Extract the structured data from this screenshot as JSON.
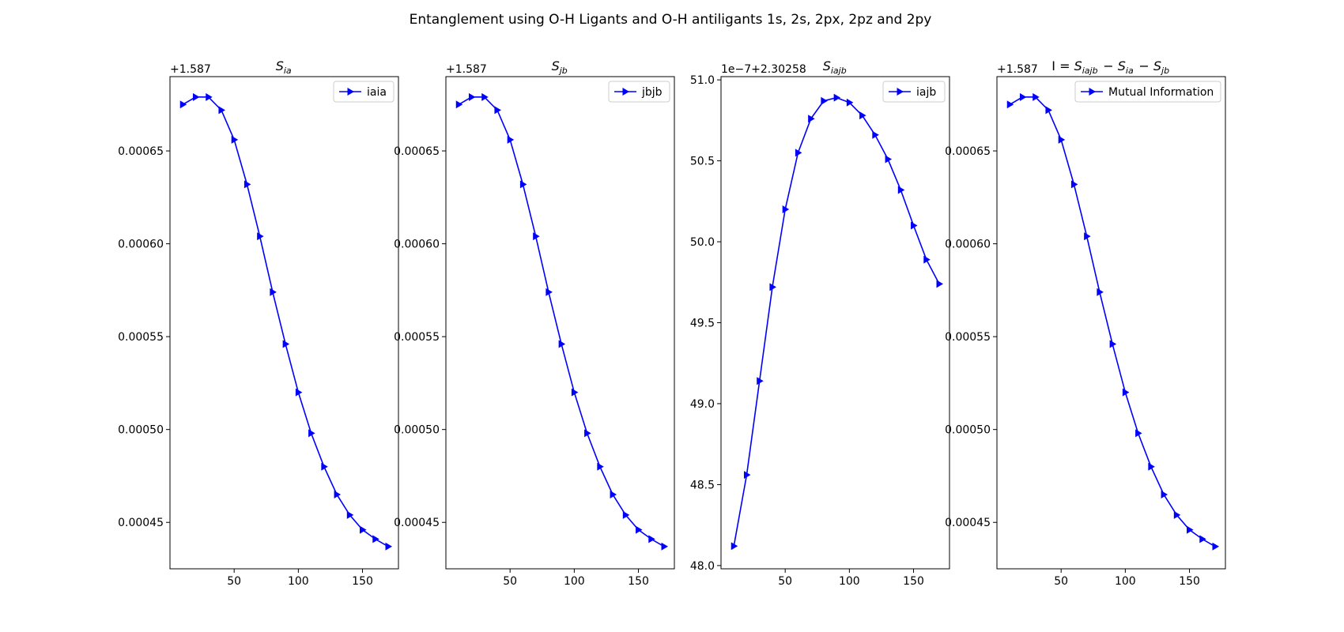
{
  "figure": {
    "suptitle": "Entanglement using O-H Ligants and O-H antiligants 1s, 2s, 2px, 2pz and 2py"
  },
  "chart_data": [
    {
      "type": "line",
      "title": "S_ia",
      "title_parts": [
        {
          "t": "S",
          "s": "ia"
        }
      ],
      "offset_label": "+1.587",
      "x": [
        10,
        20,
        30,
        40,
        50,
        60,
        70,
        80,
        90,
        100,
        110,
        120,
        130,
        140,
        150,
        160,
        170
      ],
      "series": [
        {
          "name": "iaia",
          "color": "#0000ff",
          "marker": "triangle-right",
          "values": [
            0.000675,
            0.000679,
            0.000679,
            0.000672,
            0.000656,
            0.000632,
            0.000604,
            0.000574,
            0.000546,
            0.00052,
            0.000498,
            0.00048,
            0.000465,
            0.000454,
            0.000446,
            0.000441,
            0.000437
          ]
        }
      ],
      "xlim": [
        0,
        178
      ],
      "ylim": [
        0.000425,
        0.00069
      ],
      "xticks": [
        50,
        100,
        150
      ],
      "yticks": [
        0.00045,
        0.0005,
        0.00055,
        0.0006,
        0.00065
      ],
      "ytick_labels": [
        "0.00045",
        "0.00050",
        "0.00055",
        "0.00060",
        "0.00065"
      ],
      "legend_position": "upper right"
    },
    {
      "type": "line",
      "title": "S_jb",
      "title_parts": [
        {
          "t": "S",
          "s": "jb"
        }
      ],
      "offset_label": "+1.587",
      "x": [
        10,
        20,
        30,
        40,
        50,
        60,
        70,
        80,
        90,
        100,
        110,
        120,
        130,
        140,
        150,
        160,
        170
      ],
      "series": [
        {
          "name": "jbjb",
          "color": "#0000ff",
          "marker": "triangle-right",
          "values": [
            0.000675,
            0.000679,
            0.000679,
            0.000672,
            0.000656,
            0.000632,
            0.000604,
            0.000574,
            0.000546,
            0.00052,
            0.000498,
            0.00048,
            0.000465,
            0.000454,
            0.000446,
            0.000441,
            0.000437
          ]
        }
      ],
      "xlim": [
        0,
        178
      ],
      "ylim": [
        0.000425,
        0.00069
      ],
      "xticks": [
        50,
        100,
        150
      ],
      "yticks": [
        0.00045,
        0.0005,
        0.00055,
        0.0006,
        0.00065
      ],
      "ytick_labels": [
        "0.00045",
        "0.00050",
        "0.00055",
        "0.00060",
        "0.00065"
      ],
      "legend_position": "upper right"
    },
    {
      "type": "line",
      "title": "S_iajb",
      "title_parts": [
        {
          "t": "S",
          "s": "iajb"
        }
      ],
      "offset_label": "1e−7+2.30258",
      "x": [
        10,
        20,
        30,
        40,
        50,
        60,
        70,
        80,
        90,
        100,
        110,
        120,
        130,
        140,
        150,
        160,
        170
      ],
      "series": [
        {
          "name": "iajb",
          "color": "#0000ff",
          "marker": "triangle-right",
          "values": [
            48.12,
            48.56,
            49.14,
            49.72,
            50.2,
            50.55,
            50.76,
            50.87,
            50.89,
            50.86,
            50.78,
            50.66,
            50.51,
            50.32,
            50.1,
            49.89,
            49.74
          ]
        }
      ],
      "xlim": [
        0,
        178
      ],
      "ylim": [
        47.98,
        51.02
      ],
      "xticks": [
        50,
        100,
        150
      ],
      "yticks": [
        48.0,
        48.5,
        49.0,
        49.5,
        50.0,
        50.5,
        51.0
      ],
      "ytick_labels": [
        "48.0",
        "48.5",
        "49.0",
        "49.5",
        "50.0",
        "50.5",
        "51.0"
      ],
      "legend_position": "upper right"
    },
    {
      "type": "line",
      "title": "I = S_iajb − S_ia − S_jb",
      "title_parts": [
        {
          "t": "I = "
        },
        {
          "t": "S",
          "s": "iajb"
        },
        {
          "t": " − "
        },
        {
          "t": "S",
          "s": "ia"
        },
        {
          "t": " − "
        },
        {
          "t": "S",
          "s": "jb"
        }
      ],
      "offset_label": "+1.587",
      "x": [
        10,
        20,
        30,
        40,
        50,
        60,
        70,
        80,
        90,
        100,
        110,
        120,
        130,
        140,
        150,
        160,
        170
      ],
      "series": [
        {
          "name": "Mutual Information",
          "color": "#0000ff",
          "marker": "triangle-right",
          "values": [
            0.000675,
            0.000679,
            0.000679,
            0.000672,
            0.000656,
            0.000632,
            0.000604,
            0.000574,
            0.000546,
            0.00052,
            0.000498,
            0.00048,
            0.000465,
            0.000454,
            0.000446,
            0.000441,
            0.000437
          ]
        }
      ],
      "xlim": [
        0,
        178
      ],
      "ylim": [
        0.000425,
        0.00069
      ],
      "xticks": [
        50,
        100,
        150
      ],
      "yticks": [
        0.00045,
        0.0005,
        0.00055,
        0.0006,
        0.00065
      ],
      "ytick_labels": [
        "0.00045",
        "0.00050",
        "0.00055",
        "0.00060",
        "0.00065"
      ],
      "legend_position": "upper right"
    }
  ]
}
